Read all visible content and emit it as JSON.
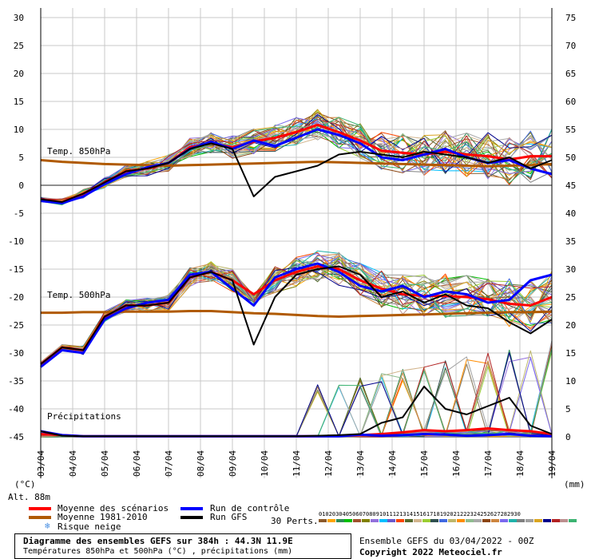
{
  "chart_data": {
    "type": "line",
    "title": "Diagramme des ensembles GEFS sur 384h : 44.3N 11.9E",
    "subtitle": "Températures 850hPa et 500hPa (°C) , précipitations (mm)",
    "y_left_label": "(°C)",
    "y_right_label": "(mm)",
    "altitude_label": "Alt. 88m",
    "y_left_ticks": [
      30,
      25,
      20,
      15,
      10,
      5,
      0,
      -5,
      -10,
      -15,
      -20,
      -25,
      -30,
      -35,
      -40,
      -45
    ],
    "y_right_ticks": [
      75,
      70,
      65,
      60,
      55,
      50,
      45,
      40,
      35,
      30,
      25,
      20,
      15,
      10,
      5,
      0
    ],
    "ylim_left": [
      -45,
      30
    ],
    "ylim_right": [
      0,
      75
    ],
    "x_tick_labels": [
      "03/04",
      "04/04",
      "05/04",
      "06/04",
      "07/04",
      "08/04",
      "09/04",
      "10/04",
      "11/04",
      "12/04",
      "13/04",
      "14/04",
      "15/04",
      "16/04",
      "17/04",
      "18/04",
      "19/04"
    ],
    "annotations": {
      "t850": "Temp. 850hPa",
      "t500": "Temp. 500hPa",
      "precip": "Précipitations"
    },
    "colors": {
      "mean": "#ff0000",
      "climatology": "#b05a00",
      "control": "#0000ff",
      "gfs": "#000000"
    },
    "series": [
      {
        "name": "Moyenne des scénarios",
        "t850": [
          -2.5,
          -3.0,
          -1.5,
          0.5,
          2.5,
          3.0,
          4.0,
          6.8,
          7.5,
          6.8,
          7.8,
          8.5,
          9.5,
          10.8,
          9.5,
          8.0,
          6.2,
          5.8,
          5.5,
          6.0,
          5.5,
          5.2,
          4.6,
          5.2,
          5.2
        ],
        "t500": [
          -32.0,
          -29.0,
          -29.5,
          -23.5,
          -21.5,
          -21.5,
          -21.0,
          -16.5,
          -15.5,
          -17.0,
          -19.5,
          -17.0,
          -15.5,
          -14.5,
          -15.0,
          -17.0,
          -18.5,
          -19.5,
          -19.8,
          -19.8,
          -20.0,
          -20.4,
          -21.2,
          -21.5,
          -20.0
        ],
        "precip": [
          0.5,
          0.3,
          0.1,
          0.1,
          0.1,
          0.1,
          0.1,
          0.1,
          0.1,
          0.1,
          0.1,
          0.1,
          0.1,
          0.1,
          0.2,
          0.3,
          0.5,
          0.8,
          1.2,
          1.0,
          1.2,
          1.5,
          1.2,
          1.0,
          0.5
        ]
      },
      {
        "name": "Moyenne 1981-2010",
        "t850": [
          4.5,
          4.2,
          4.0,
          3.8,
          3.7,
          3.6,
          3.5,
          3.6,
          3.7,
          3.8,
          3.9,
          4.0,
          4.1,
          4.2,
          4.1,
          4.0,
          3.9,
          3.8,
          3.7,
          3.6,
          3.5,
          3.4,
          3.5,
          3.6,
          3.8
        ],
        "t500": [
          -22.8,
          -22.8,
          -22.7,
          -22.7,
          -22.6,
          -22.6,
          -22.6,
          -22.5,
          -22.5,
          -22.7,
          -22.9,
          -23.0,
          -23.2,
          -23.4,
          -23.5,
          -23.4,
          -23.3,
          -23.2,
          -23.1,
          -23.0,
          -22.9,
          -22.8,
          -22.7,
          -22.7,
          -22.6
        ]
      },
      {
        "name": "Run de contrôle",
        "t850": [
          -2.8,
          -3.2,
          -2.0,
          0.2,
          2.0,
          3.2,
          4.0,
          6.5,
          7.8,
          6.5,
          8.0,
          7.0,
          8.5,
          10.0,
          9.0,
          7.5,
          5.0,
          4.5,
          5.5,
          6.5,
          5.0,
          4.0,
          4.5,
          3.0,
          2.0
        ],
        "t500": [
          -32.5,
          -29.5,
          -30.0,
          -24.0,
          -22.0,
          -21.0,
          -20.5,
          -16.0,
          -15.5,
          -18.5,
          -21.5,
          -16.5,
          -15.0,
          -14.0,
          -15.5,
          -18.0,
          -19.0,
          -18.0,
          -20.0,
          -19.0,
          -19.5,
          -21.0,
          -20.5,
          -17.0,
          -16.0
        ],
        "precip": [
          1.0,
          0.3,
          0.1,
          0.1,
          0.1,
          0.1,
          0.1,
          0.1,
          0.1,
          0.1,
          0.1,
          0.1,
          0.1,
          0.1,
          0.1,
          0.4,
          0.2,
          0.3,
          0.5,
          0.4,
          0.2,
          0.3,
          0.5,
          0.2,
          0.1
        ]
      },
      {
        "name": "Run GFS",
        "t850": [
          -2.5,
          -3.0,
          -1.5,
          0.5,
          2.5,
          3.0,
          4.0,
          6.5,
          7.5,
          6.5,
          -2.0,
          1.5,
          2.5,
          3.5,
          5.5,
          6.0,
          5.5,
          5.0,
          6.0,
          5.5,
          5.0,
          4.0,
          5.0,
          3.0,
          4.5
        ],
        "t500": [
          -32.0,
          -29.0,
          -29.5,
          -23.5,
          -21.5,
          -21.5,
          -21.0,
          -16.5,
          -15.5,
          -17.0,
          -28.5,
          -20.0,
          -16.0,
          -15.0,
          -14.5,
          -16.0,
          -20.0,
          -19.0,
          -21.0,
          -19.5,
          -21.5,
          -22.0,
          -24.5,
          -26.5,
          -24.0
        ],
        "precip": [
          1.0,
          0.2,
          0.1,
          0.1,
          0.1,
          0.1,
          0.1,
          0.1,
          0.1,
          0.1,
          0.1,
          0.1,
          0.1,
          0.2,
          0.3,
          0.5,
          2.5,
          3.5,
          9.0,
          5.0,
          4.0,
          5.5,
          7.0,
          2.0,
          0.5
        ]
      }
    ],
    "legend": {
      "mean": "Moyenne des scénarios",
      "clim": "Moyenne 1981-2010",
      "snow": "Risque neige",
      "control": "Run de contrôle",
      "gfs": "Run GFS",
      "perts": "30 Perts."
    },
    "perturbation_numbers": [
      "01",
      "02",
      "03",
      "04",
      "05",
      "06",
      "07",
      "08",
      "09",
      "10",
      "11",
      "12",
      "13",
      "14",
      "15",
      "16",
      "17",
      "18",
      "19",
      "20",
      "21",
      "22",
      "23",
      "24",
      "25",
      "26",
      "27",
      "28",
      "29",
      "30"
    ],
    "perturbation_colors": [
      "#8b5a2b",
      "#ffa500",
      "#2e8b57",
      "#00c000",
      "#a0522d",
      "#808000",
      "#9370db",
      "#00bfff",
      "#6a5acd",
      "#ff4500",
      "#556b2f",
      "#d2b48c",
      "#9acd32",
      "#2f4f4f",
      "#4169e1",
      "#bdb76b",
      "#ff8c00",
      "#8fbc8f",
      "#a9a9a9",
      "#8b4513",
      "#cd853f",
      "#7b68ee",
      "#20b2aa",
      "#808080",
      "#a0a0a0",
      "#daa520",
      "#00008b",
      "#b22222",
      "#bc8f8f",
      "#3cb371"
    ]
  },
  "footer": {
    "title": "Diagramme des ensembles GEFS sur 384h : 44.3N 11.9E",
    "subtitle": "Températures 850hPa et 500hPa (°C) , précipitations (mm)",
    "ensemble": "Ensemble GEFS du 03/04/2022 - 00Z",
    "copyright": "Copyright 2022 Meteociel.fr"
  }
}
